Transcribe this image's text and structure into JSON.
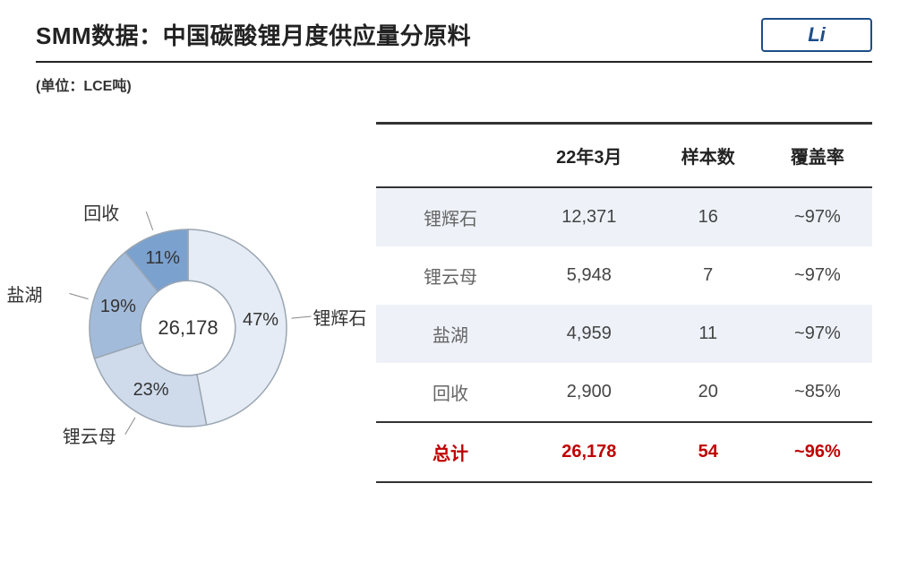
{
  "header": {
    "title": "SMM数据：中国碳酸锂月度供应量分原料",
    "badge": "Li",
    "badge_border_color": "#1d4e89",
    "badge_text_color": "#1d4e89"
  },
  "unit_label": "(单位：LCE吨)",
  "donut": {
    "type": "pie",
    "center_value": "26,178",
    "inner_radius_ratio": 0.48,
    "stroke_color": "#9aa6b2",
    "stroke_width": 1.5,
    "center_fontsize": 22,
    "slice_label_fontsize": 20,
    "ext_label_fontsize": 20,
    "slices": [
      {
        "name": "锂辉石",
        "value": 47,
        "pct_label": "47%",
        "color": "#e5ecf5"
      },
      {
        "name": "锂云母",
        "value": 23,
        "pct_label": "23%",
        "color": "#cfdbeb"
      },
      {
        "name": "盐湖",
        "value": 19,
        "pct_label": "19%",
        "color": "#a3bbda"
      },
      {
        "name": "回收",
        "value": 11,
        "pct_label": "11%",
        "color": "#7ba1cf"
      }
    ]
  },
  "table": {
    "header_border_color": "#333333",
    "alt_row_bg": "#eef2f8",
    "total_color": "#c00000",
    "columns": [
      "",
      "22年3月",
      "样本数",
      "覆盖率"
    ],
    "rows": [
      {
        "label": "锂辉石",
        "cells": [
          "12,371",
          "16",
          "~97%"
        ],
        "alt": true
      },
      {
        "label": "锂云母",
        "cells": [
          "5,948",
          "7",
          "~97%"
        ],
        "alt": false
      },
      {
        "label": "盐湖",
        "cells": [
          "4,959",
          "11",
          "~97%"
        ],
        "alt": true
      },
      {
        "label": "回收",
        "cells": [
          "2,900",
          "20",
          "~85%"
        ],
        "alt": false
      }
    ],
    "total": {
      "label": "总计",
      "cells": [
        "26,178",
        "54",
        "~96%"
      ]
    }
  }
}
